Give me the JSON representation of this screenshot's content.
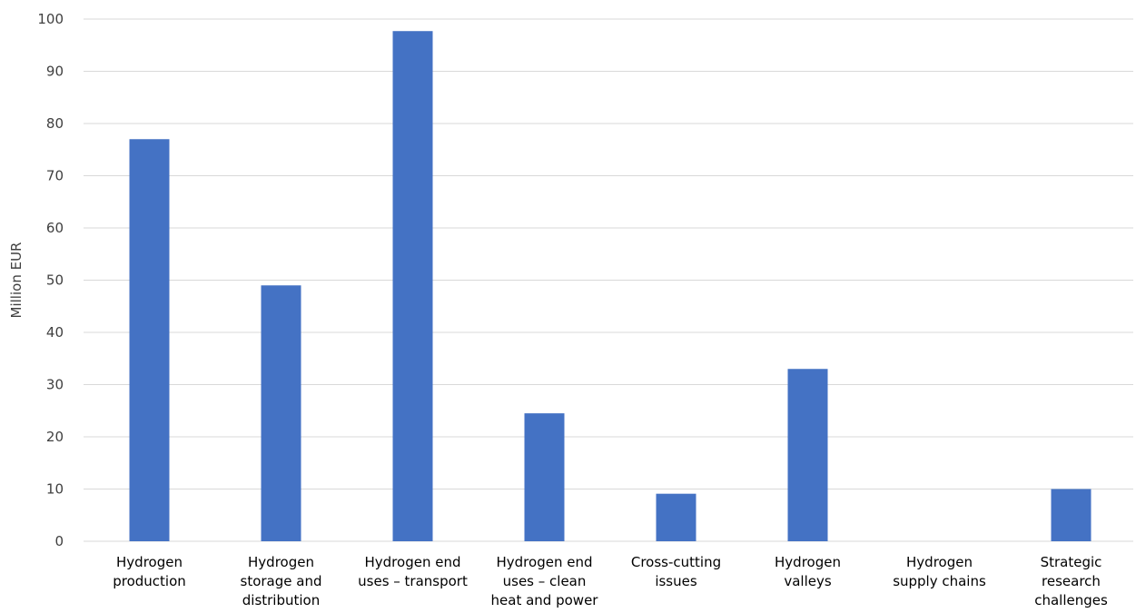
{
  "chart_data": {
    "type": "bar",
    "ylabel": "Million EUR",
    "ylim": [
      0,
      100
    ],
    "yticks": [
      "0",
      "10",
      "20",
      "30",
      "40",
      "50",
      "60",
      "70",
      "80",
      "90",
      "100"
    ],
    "grid": true,
    "legend": "none",
    "color": "#4472c4",
    "categories": [
      [
        "Hydrogen",
        "production"
      ],
      [
        "Hydrogen",
        "storage and",
        "distribution"
      ],
      [
        "Hydrogen end",
        "uses – transport"
      ],
      [
        "Hydrogen end",
        "uses – clean",
        "heat and power"
      ],
      [
        "Cross-cutting",
        "issues"
      ],
      [
        "Hydrogen",
        "valleys"
      ],
      [
        "Hydrogen",
        "supply chains"
      ],
      [
        "Strategic",
        "research",
        "challenges"
      ]
    ],
    "values": [
      77,
      49,
      97.7,
      24.5,
      9.1,
      33,
      0,
      10
    ]
  }
}
